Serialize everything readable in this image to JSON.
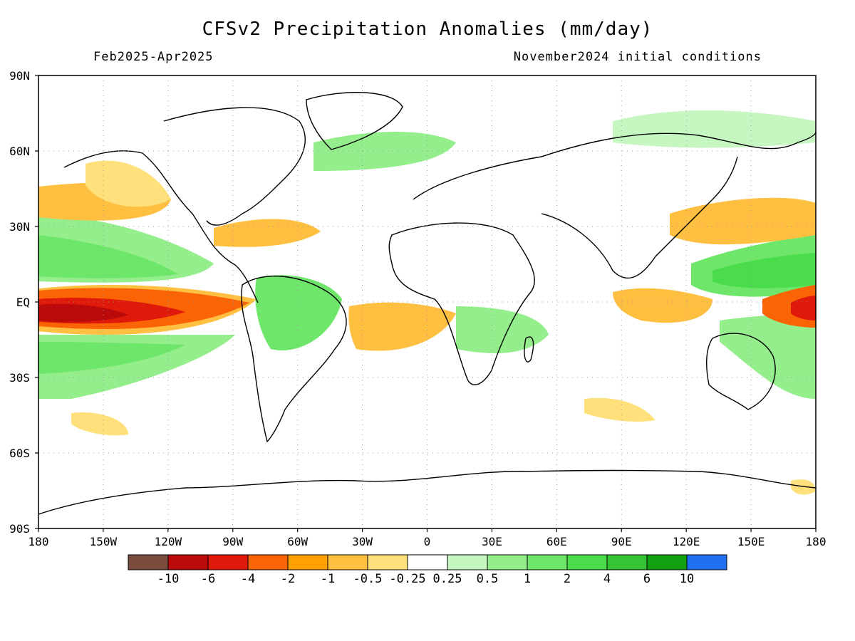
{
  "header": {
    "title": "CFSv2 Precipitation Anomalies (mm/day)",
    "period": "Feb2025-Apr2025",
    "init": "November2024 initial conditions"
  },
  "axes": {
    "lat_labels": [
      "90N",
      "60N",
      "30N",
      "EQ",
      "30S",
      "60S",
      "90S"
    ],
    "lon_labels": [
      "180",
      "150W",
      "120W",
      "90W",
      "60W",
      "30W",
      "0",
      "30E",
      "60E",
      "90E",
      "120E",
      "150E",
      "180"
    ]
  },
  "colorbar": {
    "colors": [
      "#7a4c3e",
      "#bb0a0a",
      "#e01a0a",
      "#fa6405",
      "#ff9f00",
      "#ffbf40",
      "#ffe07a",
      "#ffffff",
      "#c6f7c0",
      "#95ee8c",
      "#6ee66a",
      "#4bdc4b",
      "#36c436",
      "#13a013",
      "#2070ef"
    ],
    "labels": [
      "-10",
      "-6",
      "-4",
      "-2",
      "-1",
      "-0.5",
      "-0.25",
      "0.25",
      "0.5",
      "1",
      "2",
      "4",
      "6",
      "10"
    ]
  }
}
